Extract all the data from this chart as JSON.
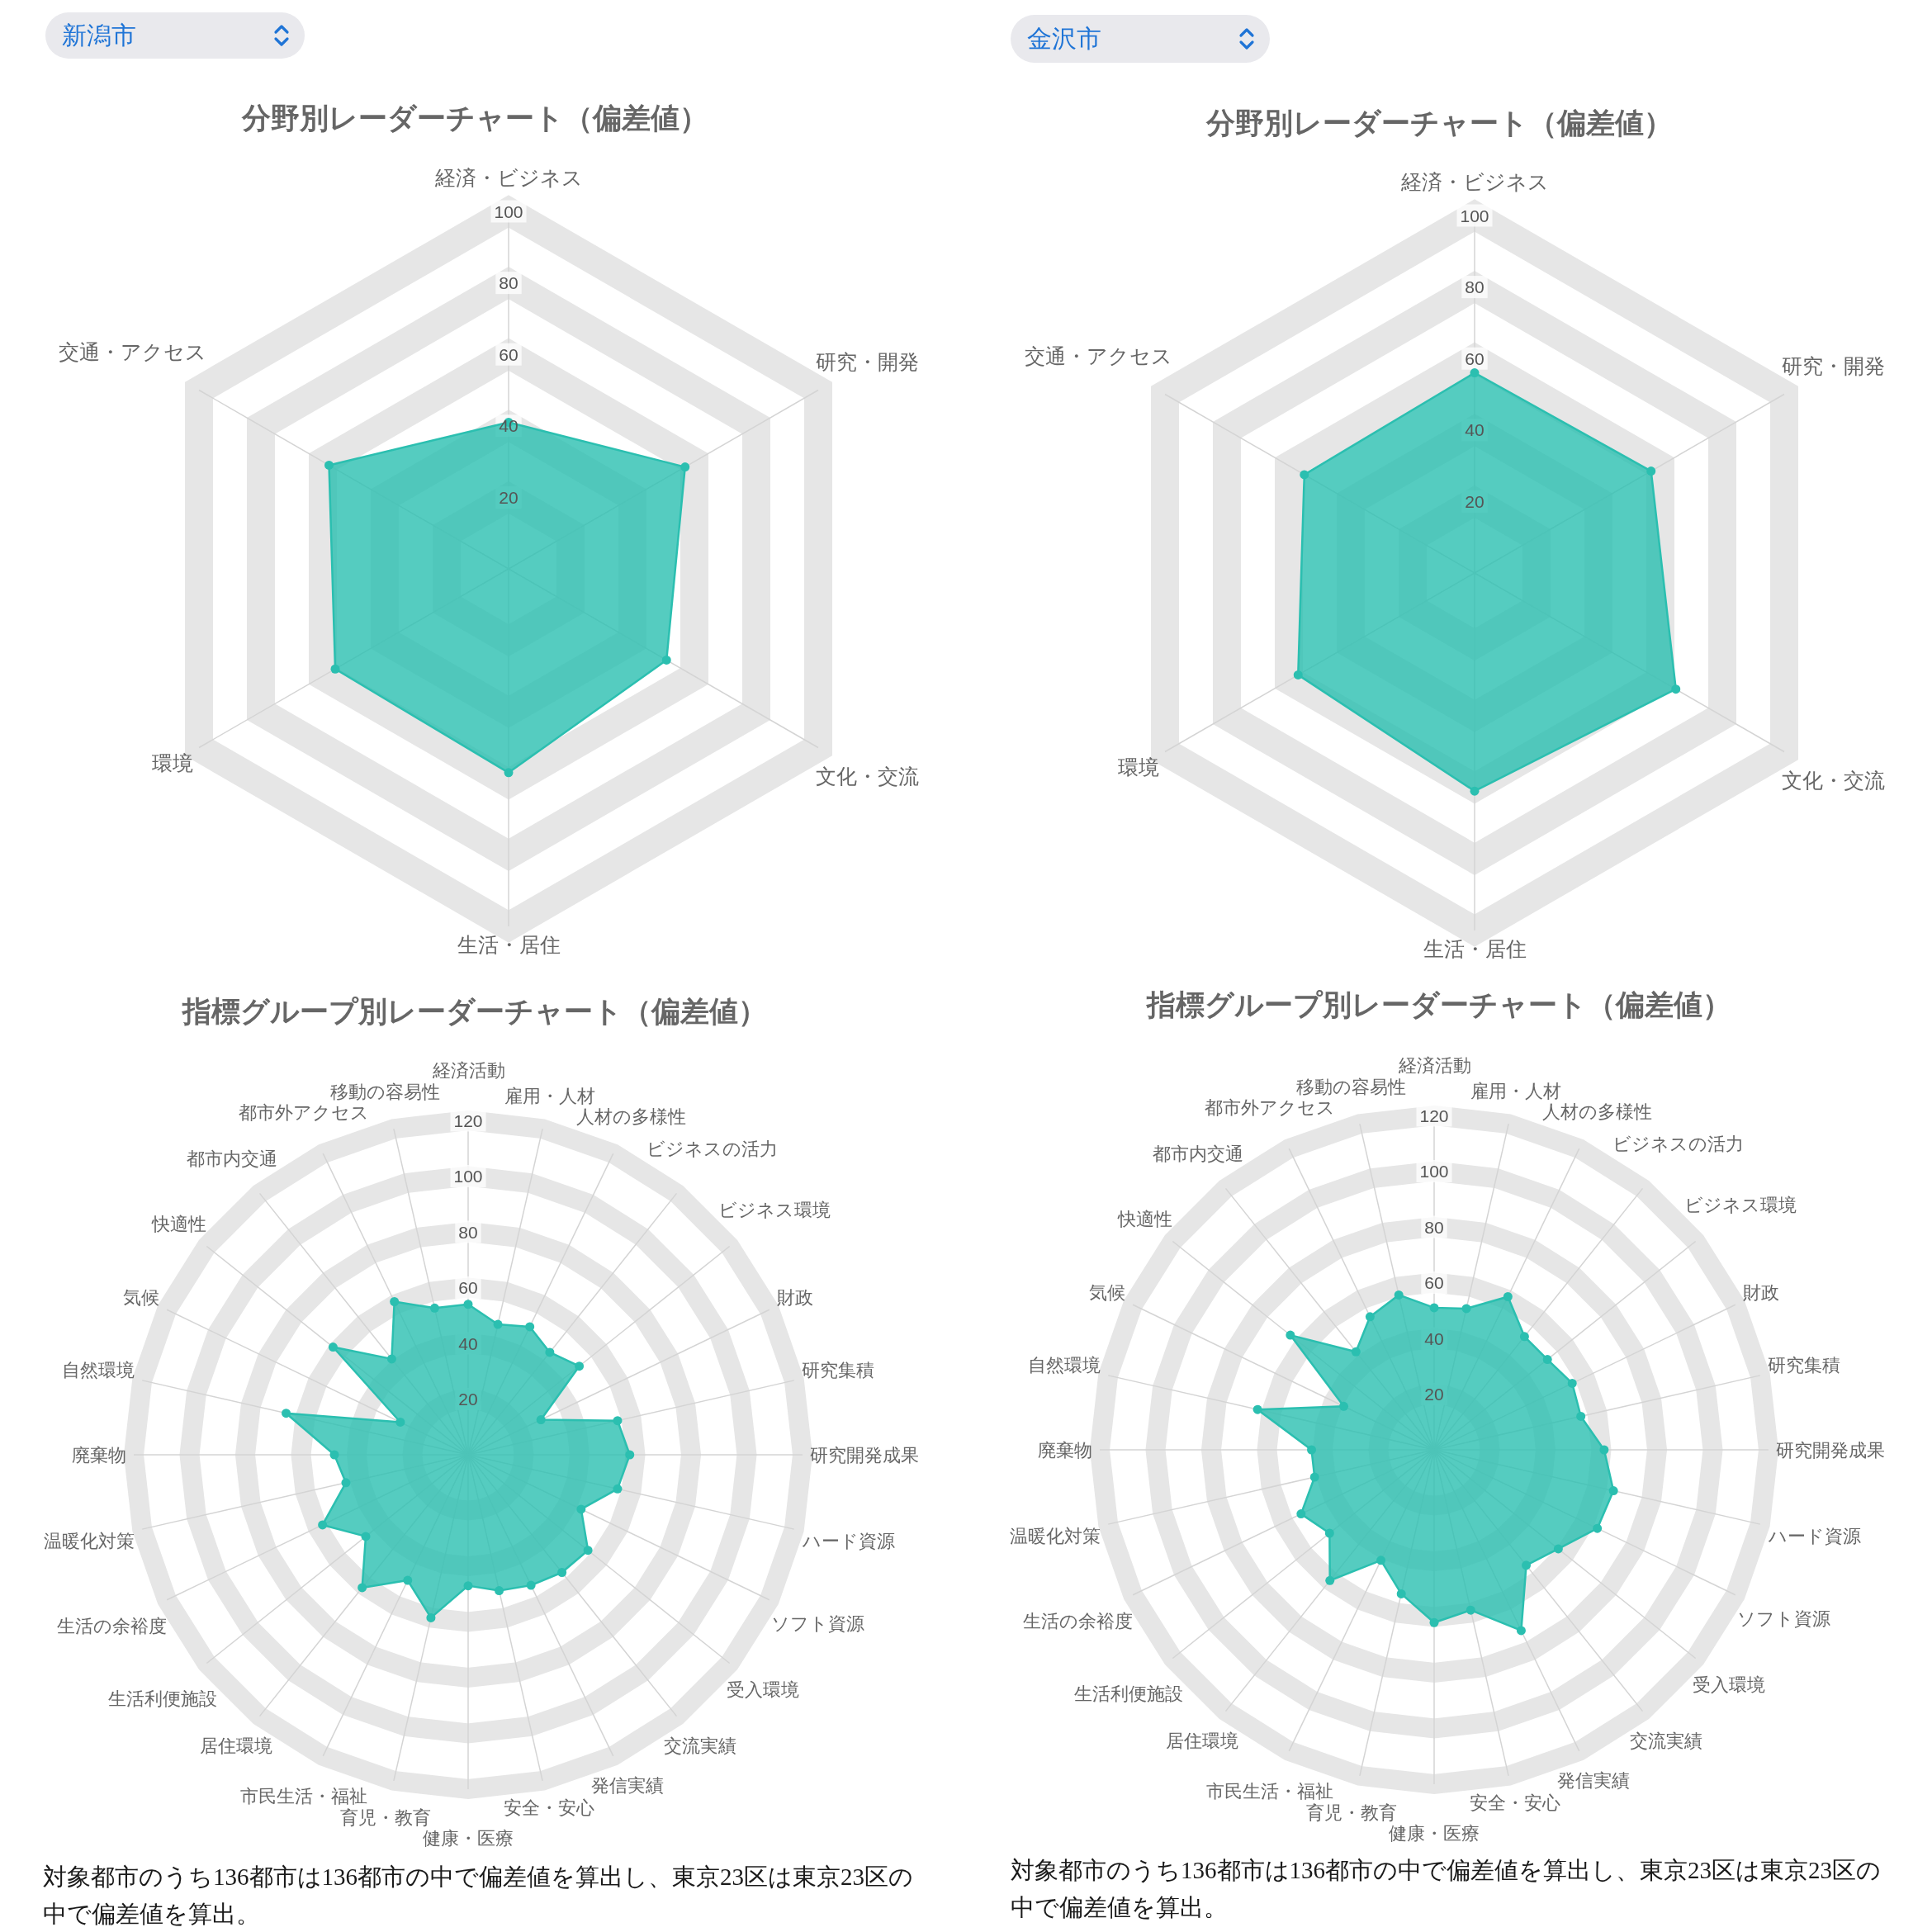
{
  "chart_data": [
    {
      "type": "radar",
      "title": "分野別レーダーチャート（偏差値）",
      "subtitle": "新潟市",
      "categories": [
        "経済・ビジネス",
        "研究・開発",
        "文化・交流",
        "生活・居住",
        "環境",
        "交通・アクセス"
      ],
      "series": [
        {
          "color": "#2bbfb0",
          "values": [
            41,
            57,
            51,
            57,
            56,
            58
          ]
        }
      ],
      "ylim": [
        0,
        100
      ],
      "yticks": [
        20,
        40,
        60,
        80,
        100
      ],
      "grid": true,
      "marker": "circle"
    },
    {
      "type": "radar",
      "title": "分野別レーダーチャート（偏差値）",
      "subtitle": "金沢市",
      "categories": [
        "経済・ビジネス",
        "研究・開発",
        "文化・交流",
        "生活・居住",
        "環境",
        "交通・アクセス"
      ],
      "series": [
        {
          "color": "#2bbfb0",
          "values": [
            56,
            57,
            65,
            61,
            57,
            55
          ]
        }
      ],
      "ylim": [
        0,
        100
      ],
      "yticks": [
        20,
        40,
        60,
        80,
        100
      ],
      "grid": true,
      "marker": "circle"
    },
    {
      "type": "radar",
      "title": "指標グループ別レーダーチャート（偏差値）",
      "categories": [
        "経済活動",
        "雇用・人材",
        "人材の多様性",
        "ビジネスの活力",
        "ビジネス環境",
        "財政",
        "研究集積",
        "研究開発成果",
        "ハード資源",
        "ソフト資源",
        "受入環境",
        "交流実績",
        "発信実績",
        "安全・安心",
        "健康・医療",
        "育児・教育",
        "市民生活・福祉",
        "居住環境",
        "生活利便施設",
        "生活の余裕度",
        "温暖化対策",
        "廃棄物",
        "自然環境",
        "気候",
        "快適性",
        "都市内交通",
        "都市外アクセス",
        "移動の容易性"
      ],
      "series": [
        {
          "color": "#2bbfb0",
          "values": [
            54,
            48,
            51,
            47,
            51,
            29,
            55,
            58,
            55,
            45,
            55,
            54,
            52,
            50,
            47,
            60,
            50,
            61,
            47,
            58,
            45,
            48,
            67,
            27,
            62,
            44,
            61,
            54
          ]
        }
      ],
      "ylim": [
        0,
        120
      ],
      "yticks": [
        20,
        40,
        60,
        80,
        100,
        120
      ],
      "grid": true,
      "marker": "circle",
      "annotations": [
        "対象都市のうち136都市は136都市の中で偏差値を算出し、東京23区は東京23区の中で偏差値を算出。"
      ]
    },
    {
      "type": "radar",
      "title": "指標グループ別レーダーチャート（偏差値）",
      "categories": [
        "経済活動",
        "雇用・人材",
        "人材の多様性",
        "ビジネスの活力",
        "ビジネス環境",
        "財政",
        "研究集積",
        "研究開発成果",
        "ハード資源",
        "ソフト資源",
        "受入環境",
        "交流実績",
        "発信実績",
        "安全・安心",
        "健康・医療",
        "育児・教育",
        "市民生活・福祉",
        "居住環境",
        "生活利便施設",
        "生活の余裕度",
        "温暖化対策",
        "廃棄物",
        "自然環境",
        "気候",
        "快適性",
        "都市内交通",
        "都市外アクセス",
        "移動の容易性"
      ],
      "series": [
        {
          "color": "#2bbfb0",
          "values": [
            51,
            52,
            61,
            52,
            52,
            55,
            54,
            61,
            66,
            65,
            57,
            53,
            72,
            59,
            62,
            53,
            44,
            60,
            48,
            53,
            44,
            44,
            65,
            36,
            66,
            45,
            53,
            57
          ]
        }
      ],
      "ylim": [
        0,
        120
      ],
      "yticks": [
        20,
        40,
        60,
        80,
        100,
        120
      ],
      "grid": true,
      "marker": "circle",
      "annotations": [
        "対象都市のうち136都市は136都市の中で偏差値を算出し、東京23区は東京23区の中で偏差値を算出。"
      ]
    }
  ]
}
